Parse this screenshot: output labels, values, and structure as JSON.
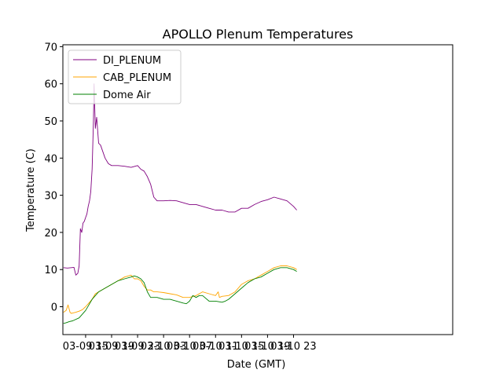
{
  "chart_data": {
    "type": "line",
    "title": "APOLLO Plenum Temperatures",
    "xlabel": "Date (GMT)",
    "ylabel": "Temperature (C)",
    "xlim": [
      11.5,
      71.5
    ],
    "ylim": [
      -7.5,
      70.5
    ],
    "x_unit": "hours since 03-09 00:00 GMT",
    "xticks": [
      {
        "value": 15,
        "label": "03-09 15"
      },
      {
        "value": 19,
        "label": "03-09 19"
      },
      {
        "value": 23,
        "label": "03-09 23"
      },
      {
        "value": 27,
        "label": "03-10 03"
      },
      {
        "value": 31,
        "label": "03-10 07"
      },
      {
        "value": 35,
        "label": "03-10 11"
      },
      {
        "value": 39,
        "label": "03-10 15"
      },
      {
        "value": 43,
        "label": "03-10 19"
      },
      {
        "value": 47,
        "label": "03-10 23"
      }
    ],
    "yticks": [
      {
        "value": 0,
        "label": "0"
      },
      {
        "value": 10,
        "label": "10"
      },
      {
        "value": 20,
        "label": "20"
      },
      {
        "value": 30,
        "label": "30"
      },
      {
        "value": 40,
        "label": "40"
      },
      {
        "value": 50,
        "label": "50"
      },
      {
        "value": 60,
        "label": "60"
      },
      {
        "value": 70,
        "label": "70"
      }
    ],
    "legend_position": "top-left",
    "series": [
      {
        "name": "DI_PLENUM",
        "color": "#800080",
        "x": [
          11.6,
          12.2,
          12.8,
          13.2,
          13.5,
          13.8,
          14.0,
          14.2,
          14.4,
          14.6,
          14.8,
          15.0,
          15.2,
          15.4,
          15.6,
          15.8,
          16.0,
          16.1,
          16.2,
          16.3,
          16.5,
          16.7,
          17.0,
          17.3,
          17.6,
          18.0,
          18.5,
          19.0,
          20.0,
          21.0,
          22.0,
          23.0,
          23.5,
          24.0,
          24.5,
          25.0,
          25.5,
          26.0,
          27.0,
          28.0,
          29.0,
          30.0,
          31.0,
          32.0,
          33.0,
          34.0,
          35.0,
          36.0,
          37.0,
          38.0,
          39.0,
          40.0,
          41.0,
          42.0,
          43.0,
          44.0,
          45.0,
          46.0,
          47.0,
          47.5
        ],
        "y": [
          10.5,
          10.4,
          10.5,
          10.6,
          8.5,
          9.0,
          11.0,
          21.0,
          20.0,
          22.5,
          23.0,
          24.0,
          25.0,
          27.0,
          28.5,
          31.0,
          37.0,
          43.0,
          50.0,
          60.0,
          48.0,
          51.0,
          44.0,
          43.5,
          42.0,
          40.0,
          38.5,
          38.0,
          38.0,
          37.8,
          37.5,
          38.0,
          37.0,
          36.5,
          35.0,
          33.0,
          29.5,
          28.5,
          28.5,
          28.6,
          28.5,
          28.0,
          27.5,
          27.5,
          27.0,
          26.5,
          26.0,
          26.0,
          25.5,
          25.5,
          26.5,
          26.5,
          27.5,
          28.3,
          28.8,
          29.5,
          29.0,
          28.5,
          27.0,
          26.0
        ]
      },
      {
        "name": "CAB_PLENUM",
        "color": "#ffa500",
        "x": [
          11.6,
          12.0,
          12.3,
          12.6,
          12.8,
          13.0,
          13.5,
          14.0,
          14.5,
          15.0,
          15.5,
          16.0,
          16.5,
          17.0,
          18.0,
          19.0,
          20.0,
          21.0,
          22.0,
          22.5,
          23.0,
          23.5,
          24.0,
          24.5,
          25.0,
          25.5,
          26.0,
          27.0,
          28.0,
          29.0,
          30.0,
          31.0,
          32.0,
          33.0,
          34.0,
          35.0,
          35.4,
          35.6,
          36.0,
          37.0,
          38.0,
          39.0,
          40.0,
          41.0,
          42.0,
          43.0,
          44.0,
          45.0,
          46.0,
          47.0,
          47.5
        ],
        "y": [
          -1.5,
          -1.0,
          0.5,
          -1.5,
          -1.8,
          -1.7,
          -1.5,
          -1.2,
          -0.8,
          0.0,
          1.0,
          2.0,
          3.5,
          4.0,
          5.0,
          6.0,
          7.0,
          8.0,
          8.5,
          7.5,
          7.5,
          7.0,
          5.5,
          4.5,
          4.5,
          4.0,
          4.0,
          3.8,
          3.5,
          3.2,
          2.5,
          2.5,
          3.0,
          4.0,
          3.5,
          3.0,
          4.0,
          2.5,
          2.8,
          3.0,
          4.0,
          6.0,
          7.0,
          7.5,
          8.5,
          9.5,
          10.5,
          11.0,
          11.0,
          10.5,
          10.0
        ]
      },
      {
        "name": "Dome Air",
        "color": "#008000",
        "x": [
          11.6,
          12.0,
          12.5,
          13.0,
          14.0,
          15.0,
          15.5,
          16.0,
          17.0,
          18.0,
          19.0,
          20.0,
          21.0,
          22.0,
          22.5,
          23.0,
          23.5,
          24.0,
          24.5,
          25.0,
          26.0,
          27.0,
          28.0,
          29.0,
          30.0,
          30.5,
          31.0,
          31.5,
          32.0,
          32.5,
          33.0,
          34.0,
          35.0,
          36.0,
          36.5,
          37.0,
          38.0,
          39.0,
          40.0,
          41.0,
          42.0,
          43.0,
          44.0,
          45.0,
          46.0,
          47.0,
          47.5
        ],
        "y": [
          -4.5,
          -4.3,
          -4.0,
          -3.8,
          -3.0,
          -1.0,
          0.5,
          2.0,
          4.0,
          5.0,
          6.0,
          7.0,
          7.5,
          8.0,
          8.3,
          8.0,
          7.5,
          6.5,
          4.0,
          2.5,
          2.5,
          2.0,
          2.0,
          1.5,
          1.0,
          0.8,
          1.5,
          3.0,
          2.5,
          3.0,
          3.0,
          1.5,
          1.5,
          1.2,
          1.5,
          2.0,
          3.5,
          5.0,
          6.5,
          7.5,
          8.0,
          9.0,
          10.0,
          10.5,
          10.5,
          10.0,
          9.5
        ]
      }
    ]
  }
}
